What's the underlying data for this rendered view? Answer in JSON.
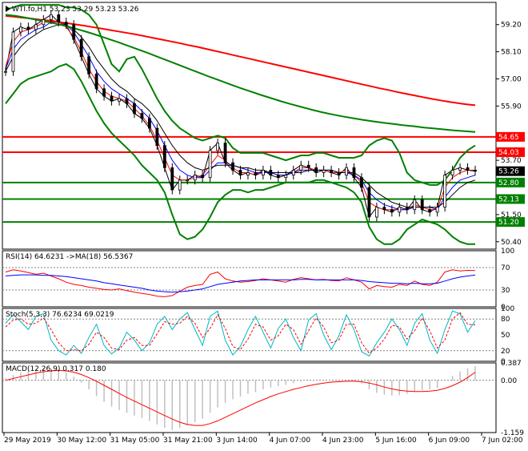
{
  "colors": {
    "background": "#ffffff",
    "grid": "#000000",
    "bull_candle": "#000000",
    "bear_candle": "#000000",
    "ma_fast": "#ff0000",
    "ma_mid": "#0000ff",
    "ma_slow": "#000000",
    "bollinger": "#008000",
    "ma_200": "#ff0000",
    "ma_100": "#008000",
    "resistance_line": "#ff0000",
    "support_line": "#008000",
    "rsi_line": "#ff0000",
    "rsi_ma": "#0000ff",
    "stoch_main": "#00b7c3",
    "stoch_signal": "#ff0000",
    "macd_hist": "#c0c0c0",
    "macd_signal": "#ff0000"
  },
  "main": {
    "header": "WTI.fo,H1  53.23 53.29 53.23 53.26",
    "current_price": "53.26"
  },
  "rsi": {
    "header": "RSI(14) 64.6231  ->MA(18) 56.5367"
  },
  "stoch": {
    "header": "Stoch(5,3,3) 76.6234 69.0219"
  },
  "macd": {
    "header": "MACD(12,26,9) 0.317 0.180"
  },
  "chart_data": [
    {
      "type": "line",
      "title": "WTI.fo,H1  53.23 53.29 53.23 53.26",
      "ylim": [
        50.1,
        60.1
      ],
      "yticks": [
        "59.20",
        "58.10",
        "57.00",
        "55.90",
        "53.70",
        "51.50",
        "50.40"
      ],
      "x_labels": [
        "29 May 2019",
        "30 May 12:00",
        "31 May 05:00",
        "31 May 21:00",
        "3 Jun 14:00",
        "4 Jun 07:00",
        "4 Jun 23:00",
        "5 Jun 16:00",
        "6 Jun 09:00",
        "7 Jun 02:00"
      ],
      "price_labels": [
        {
          "value": 54.65,
          "text": "54.65",
          "color": "#ff0000"
        },
        {
          "value": 54.03,
          "text": "54.03",
          "color": "#ff0000"
        },
        {
          "value": 53.26,
          "text": "53.26",
          "color": "#000000"
        },
        {
          "value": 52.8,
          "text": "52.80",
          "color": "#008000"
        },
        {
          "value": 52.13,
          "text": "52.13",
          "color": "#008000"
        },
        {
          "value": 51.2,
          "text": "51.20",
          "color": "#008000"
        }
      ],
      "horizontal_levels": [
        {
          "value": 54.65,
          "color": "#ff0000"
        },
        {
          "value": 54.03,
          "color": "#ff0000"
        },
        {
          "value": 52.8,
          "color": "#008000"
        },
        {
          "value": 52.13,
          "color": "#008000"
        },
        {
          "value": 51.2,
          "color": "#008000"
        }
      ],
      "series": [
        {
          "color": "#000000",
          "kind": "close",
          "values": [
            57.3,
            58.9,
            59.1,
            59.0,
            59.2,
            59.4,
            59.6,
            59.3,
            59.2,
            58.6,
            57.9,
            57.2,
            56.6,
            56.3,
            56.1,
            56.2,
            56.0,
            55.6,
            55.4,
            55.0,
            54.3,
            53.4,
            52.5,
            52.9,
            52.9,
            53.1,
            53.0,
            54.1,
            54.4,
            53.6,
            53.3,
            53.1,
            53.2,
            53.1,
            53.3,
            53.1,
            53.0,
            53.1,
            53.3,
            53.5,
            53.4,
            53.2,
            53.3,
            53.2,
            53.1,
            53.4,
            53.0,
            52.6,
            51.4,
            51.8,
            51.7,
            51.6,
            51.8,
            51.7,
            52.1,
            51.7,
            51.6,
            51.8,
            53.1,
            53.3,
            53.4,
            53.3,
            53.26
          ]
        },
        {
          "color": "#ff0000",
          "kind": "ma_fast",
          "values": [
            57.5,
            58.5,
            58.9,
            59.0,
            59.1,
            59.3,
            59.4,
            59.3,
            59.1,
            58.7,
            58.1,
            57.4,
            56.9,
            56.5,
            56.3,
            56.2,
            56.1,
            55.8,
            55.5,
            55.1,
            54.5,
            53.8,
            53.1,
            52.9,
            52.9,
            53.0,
            53.1,
            53.5,
            53.9,
            53.7,
            53.4,
            53.2,
            53.2,
            53.1,
            53.2,
            53.2,
            53.1,
            53.1,
            53.2,
            53.4,
            53.4,
            53.3,
            53.3,
            53.2,
            53.2,
            53.3,
            53.1,
            52.8,
            52.0,
            51.8,
            51.7,
            51.7,
            51.7,
            51.7,
            51.9,
            51.8,
            51.7,
            51.7,
            52.6,
            53.0,
            53.2,
            53.3,
            53.3
          ]
        },
        {
          "color": "#0000ff",
          "kind": "ma_mid",
          "values": [
            57.4,
            58.2,
            58.6,
            58.8,
            59.0,
            59.1,
            59.3,
            59.3,
            59.2,
            58.9,
            58.4,
            57.9,
            57.3,
            56.9,
            56.6,
            56.4,
            56.2,
            56.0,
            55.7,
            55.4,
            54.9,
            54.3,
            53.7,
            53.3,
            53.1,
            53.0,
            53.0,
            53.3,
            53.6,
            53.6,
            53.5,
            53.4,
            53.3,
            53.2,
            53.2,
            53.2,
            53.1,
            53.1,
            53.2,
            53.3,
            53.3,
            53.3,
            53.3,
            53.3,
            53.2,
            53.2,
            53.1,
            52.9,
            52.4,
            52.1,
            51.9,
            51.8,
            51.7,
            51.7,
            51.8,
            51.8,
            51.8,
            51.7,
            52.2,
            52.6,
            52.9,
            53.0,
            53.1
          ]
        },
        {
          "color": "#000000",
          "kind": "ma_slow",
          "values": [
            57.3,
            57.9,
            58.3,
            58.6,
            58.8,
            59.0,
            59.1,
            59.2,
            59.2,
            59.0,
            58.7,
            58.3,
            57.8,
            57.4,
            57.0,
            56.7,
            56.5,
            56.2,
            56.0,
            55.7,
            55.3,
            54.8,
            54.3,
            53.9,
            53.6,
            53.4,
            53.3,
            53.4,
            53.5,
            53.5,
            53.5,
            53.4,
            53.4,
            53.3,
            53.3,
            53.2,
            53.2,
            53.2,
            53.2,
            53.2,
            53.3,
            53.3,
            53.3,
            53.3,
            53.2,
            53.2,
            53.2,
            53.0,
            52.7,
            52.4,
            52.2,
            52.0,
            51.9,
            51.8,
            51.8,
            51.8,
            51.8,
            51.8,
            52.0,
            52.3,
            52.6,
            52.8,
            52.9
          ]
        },
        {
          "color": "#008000",
          "kind": "bb_upper",
          "values": [
            59.8,
            59.9,
            60.0,
            60.0,
            60.0,
            60.0,
            60.0,
            60.0,
            59.9,
            59.9,
            59.8,
            59.6,
            59.2,
            58.4,
            57.6,
            57.3,
            57.8,
            57.9,
            57.4,
            56.8,
            56.2,
            55.7,
            55.3,
            55.0,
            54.8,
            54.6,
            54.5,
            54.6,
            54.7,
            54.6,
            54.2,
            54.0,
            54.0,
            54.0,
            54.0,
            53.9,
            53.8,
            53.7,
            53.8,
            53.9,
            53.9,
            54.0,
            54.0,
            53.9,
            53.8,
            53.8,
            53.8,
            53.9,
            54.3,
            54.5,
            54.6,
            54.5,
            54.0,
            53.2,
            52.9,
            52.8,
            52.7,
            52.7,
            52.9,
            53.3,
            53.8,
            54.1,
            54.3
          ]
        },
        {
          "color": "#008000",
          "kind": "bb_lower",
          "values": [
            56.0,
            56.4,
            56.8,
            57.0,
            57.1,
            57.2,
            57.3,
            57.5,
            57.6,
            57.4,
            56.9,
            56.3,
            55.7,
            55.2,
            54.8,
            54.5,
            54.2,
            53.9,
            53.5,
            53.2,
            52.9,
            52.4,
            51.5,
            50.7,
            50.5,
            50.6,
            50.9,
            51.4,
            52.0,
            52.3,
            52.5,
            52.5,
            52.4,
            52.5,
            52.5,
            52.6,
            52.7,
            52.8,
            52.8,
            52.8,
            52.8,
            52.9,
            52.9,
            52.8,
            52.7,
            52.6,
            52.4,
            52.0,
            51.0,
            50.5,
            50.3,
            50.3,
            50.5,
            50.9,
            51.1,
            51.3,
            51.2,
            51.1,
            50.9,
            50.6,
            50.4,
            50.3,
            50.3
          ]
        },
        {
          "color": "#ff0000",
          "kind": "ma_200",
          "values": [
            59.55,
            59.52,
            59.48,
            59.44,
            59.4,
            59.36,
            59.31,
            59.26,
            59.21,
            59.16,
            59.1,
            59.04,
            58.98,
            58.92,
            58.86,
            58.8,
            58.73,
            58.66,
            58.59,
            58.52,
            58.45,
            58.37,
            58.3,
            58.22,
            58.14,
            58.06,
            57.98,
            57.9,
            57.82,
            57.74,
            57.66,
            57.58,
            57.5,
            57.42,
            57.34,
            57.26,
            57.18,
            57.1,
            57.02,
            56.94,
            56.86,
            56.78,
            56.7,
            56.62,
            56.55,
            56.47,
            56.4,
            56.33,
            56.26,
            56.19,
            56.13,
            56.07,
            56.02,
            55.97,
            55.93
          ]
        },
        {
          "color": "#008000",
          "kind": "ma_100",
          "values": [
            59.6,
            59.55,
            59.48,
            59.4,
            59.32,
            59.23,
            59.13,
            59.02,
            58.9,
            58.77,
            58.63,
            58.49,
            58.34,
            58.19,
            58.04,
            57.88,
            57.72,
            57.56,
            57.4,
            57.24,
            57.08,
            56.93,
            56.78,
            56.63,
            56.49,
            56.35,
            56.22,
            56.09,
            55.97,
            55.86,
            55.75,
            55.65,
            55.56,
            55.48,
            55.41,
            55.34,
            55.28,
            55.22,
            55.17,
            55.12,
            55.08,
            55.03,
            54.99,
            54.95,
            54.91,
            54.88,
            54.85
          ]
        }
      ]
    },
    {
      "type": "line",
      "title": "RSI(14) 64.6231  ->MA(18) 56.5367",
      "ylim": [
        0,
        100
      ],
      "yticks": [
        "100",
        "70",
        "30",
        "0"
      ],
      "levels": [
        70,
        30
      ],
      "series": [
        {
          "color": "#ff0000",
          "values": [
            62,
            66,
            64,
            61,
            58,
            60,
            55,
            50,
            44,
            40,
            38,
            35,
            33,
            31,
            30,
            32,
            29,
            26,
            24,
            22,
            19,
            18,
            20,
            28,
            35,
            38,
            40,
            58,
            62,
            50,
            46,
            44,
            45,
            47,
            50,
            48,
            46,
            44,
            49,
            52,
            50,
            48,
            49,
            47,
            46,
            52,
            48,
            44,
            32,
            38,
            36,
            35,
            40,
            38,
            46,
            40,
            38,
            44,
            62,
            66,
            64,
            65,
            64.6
          ]
        },
        {
          "color": "#0000ff",
          "values": [
            55,
            56,
            57,
            57,
            57,
            56,
            56,
            55,
            54,
            52,
            50,
            48,
            46,
            43,
            41,
            39,
            37,
            35,
            33,
            30,
            28,
            27,
            26,
            27,
            28,
            30,
            32,
            36,
            40,
            42,
            44,
            46,
            47,
            48,
            48,
            48,
            48,
            48,
            48,
            49,
            49,
            48,
            48,
            48,
            48,
            48,
            48,
            47,
            45,
            44,
            43,
            42,
            42,
            41,
            42,
            41,
            41,
            42,
            46,
            50,
            53,
            55,
            56.5
          ]
        }
      ]
    },
    {
      "type": "line",
      "title": "Stoch(5,3,3) 76.6234 69.0219",
      "ylim": [
        0,
        100
      ],
      "yticks": [
        "100",
        "80",
        "50",
        "20",
        "0"
      ],
      "levels": [
        80,
        20
      ],
      "series": [
        {
          "color": "#00b7c3",
          "values": [
            72,
            88,
            75,
            60,
            85,
            90,
            40,
            20,
            12,
            30,
            15,
            45,
            70,
            30,
            14,
            25,
            55,
            40,
            20,
            35,
            70,
            85,
            60,
            80,
            92,
            60,
            30,
            85,
            95,
            40,
            12,
            28,
            60,
            85,
            55,
            25,
            62,
            80,
            45,
            20,
            78,
            90,
            50,
            22,
            48,
            88,
            60,
            18,
            10,
            35,
            55,
            80,
            60,
            30,
            72,
            90,
            40,
            15,
            60,
            95,
            90,
            55,
            76.6
          ]
        },
        {
          "color": "#ff0000",
          "values": [
            65,
            78,
            80,
            70,
            72,
            82,
            60,
            35,
            20,
            22,
            20,
            32,
            55,
            45,
            25,
            22,
            40,
            45,
            30,
            30,
            52,
            75,
            70,
            72,
            85,
            72,
            45,
            62,
            88,
            62,
            28,
            22,
            42,
            70,
            65,
            40,
            48,
            70,
            60,
            32,
            58,
            82,
            65,
            35,
            40,
            70,
            70,
            35,
            15,
            25,
            42,
            68,
            65,
            42,
            58,
            82,
            58,
            25,
            40,
            80,
            92,
            70,
            69.0
          ]
        }
      ]
    },
    {
      "type": "bar",
      "title": "MACD(12,26,9) 0.317 0.180",
      "ylim": [
        -1.159,
        0.387
      ],
      "yticks": [
        "0.387",
        "0.00",
        "-1.159"
      ],
      "series": [
        {
          "name": "MACD",
          "color": "#c0c0c0",
          "values": [
            0.05,
            0.12,
            0.18,
            0.22,
            0.25,
            0.27,
            0.27,
            0.24,
            0.18,
            0.08,
            -0.05,
            -0.2,
            -0.35,
            -0.48,
            -0.58,
            -0.66,
            -0.72,
            -0.78,
            -0.84,
            -0.9,
            -0.98,
            -1.05,
            -1.1,
            -1.06,
            -1.0,
            -0.93,
            -0.85,
            -0.72,
            -0.6,
            -0.5,
            -0.42,
            -0.36,
            -0.3,
            -0.26,
            -0.2,
            -0.16,
            -0.13,
            -0.1,
            -0.06,
            -0.03,
            -0.01,
            0.0,
            0.01,
            0.0,
            -0.02,
            0.0,
            -0.02,
            -0.07,
            -0.2,
            -0.28,
            -0.32,
            -0.34,
            -0.33,
            -0.3,
            -0.25,
            -0.22,
            -0.2,
            -0.17,
            -0.02,
            0.1,
            0.2,
            0.27,
            0.317
          ]
        },
        {
          "name": "Signal",
          "color": "#ff0000",
          "values": [
            0.0,
            0.04,
            0.08,
            0.12,
            0.16,
            0.19,
            0.21,
            0.22,
            0.21,
            0.18,
            0.13,
            0.06,
            -0.02,
            -0.11,
            -0.2,
            -0.29,
            -0.38,
            -0.46,
            -0.54,
            -0.62,
            -0.7,
            -0.78,
            -0.86,
            -0.93,
            -0.98,
            -1.0,
            -1.0,
            -0.96,
            -0.9,
            -0.82,
            -0.74,
            -0.66,
            -0.58,
            -0.5,
            -0.43,
            -0.36,
            -0.3,
            -0.25,
            -0.2,
            -0.16,
            -0.12,
            -0.09,
            -0.06,
            -0.04,
            -0.03,
            -0.02,
            -0.02,
            -0.03,
            -0.06,
            -0.1,
            -0.15,
            -0.19,
            -0.22,
            -0.24,
            -0.25,
            -0.25,
            -0.24,
            -0.22,
            -0.18,
            -0.12,
            -0.04,
            0.06,
            0.18
          ]
        }
      ]
    }
  ]
}
